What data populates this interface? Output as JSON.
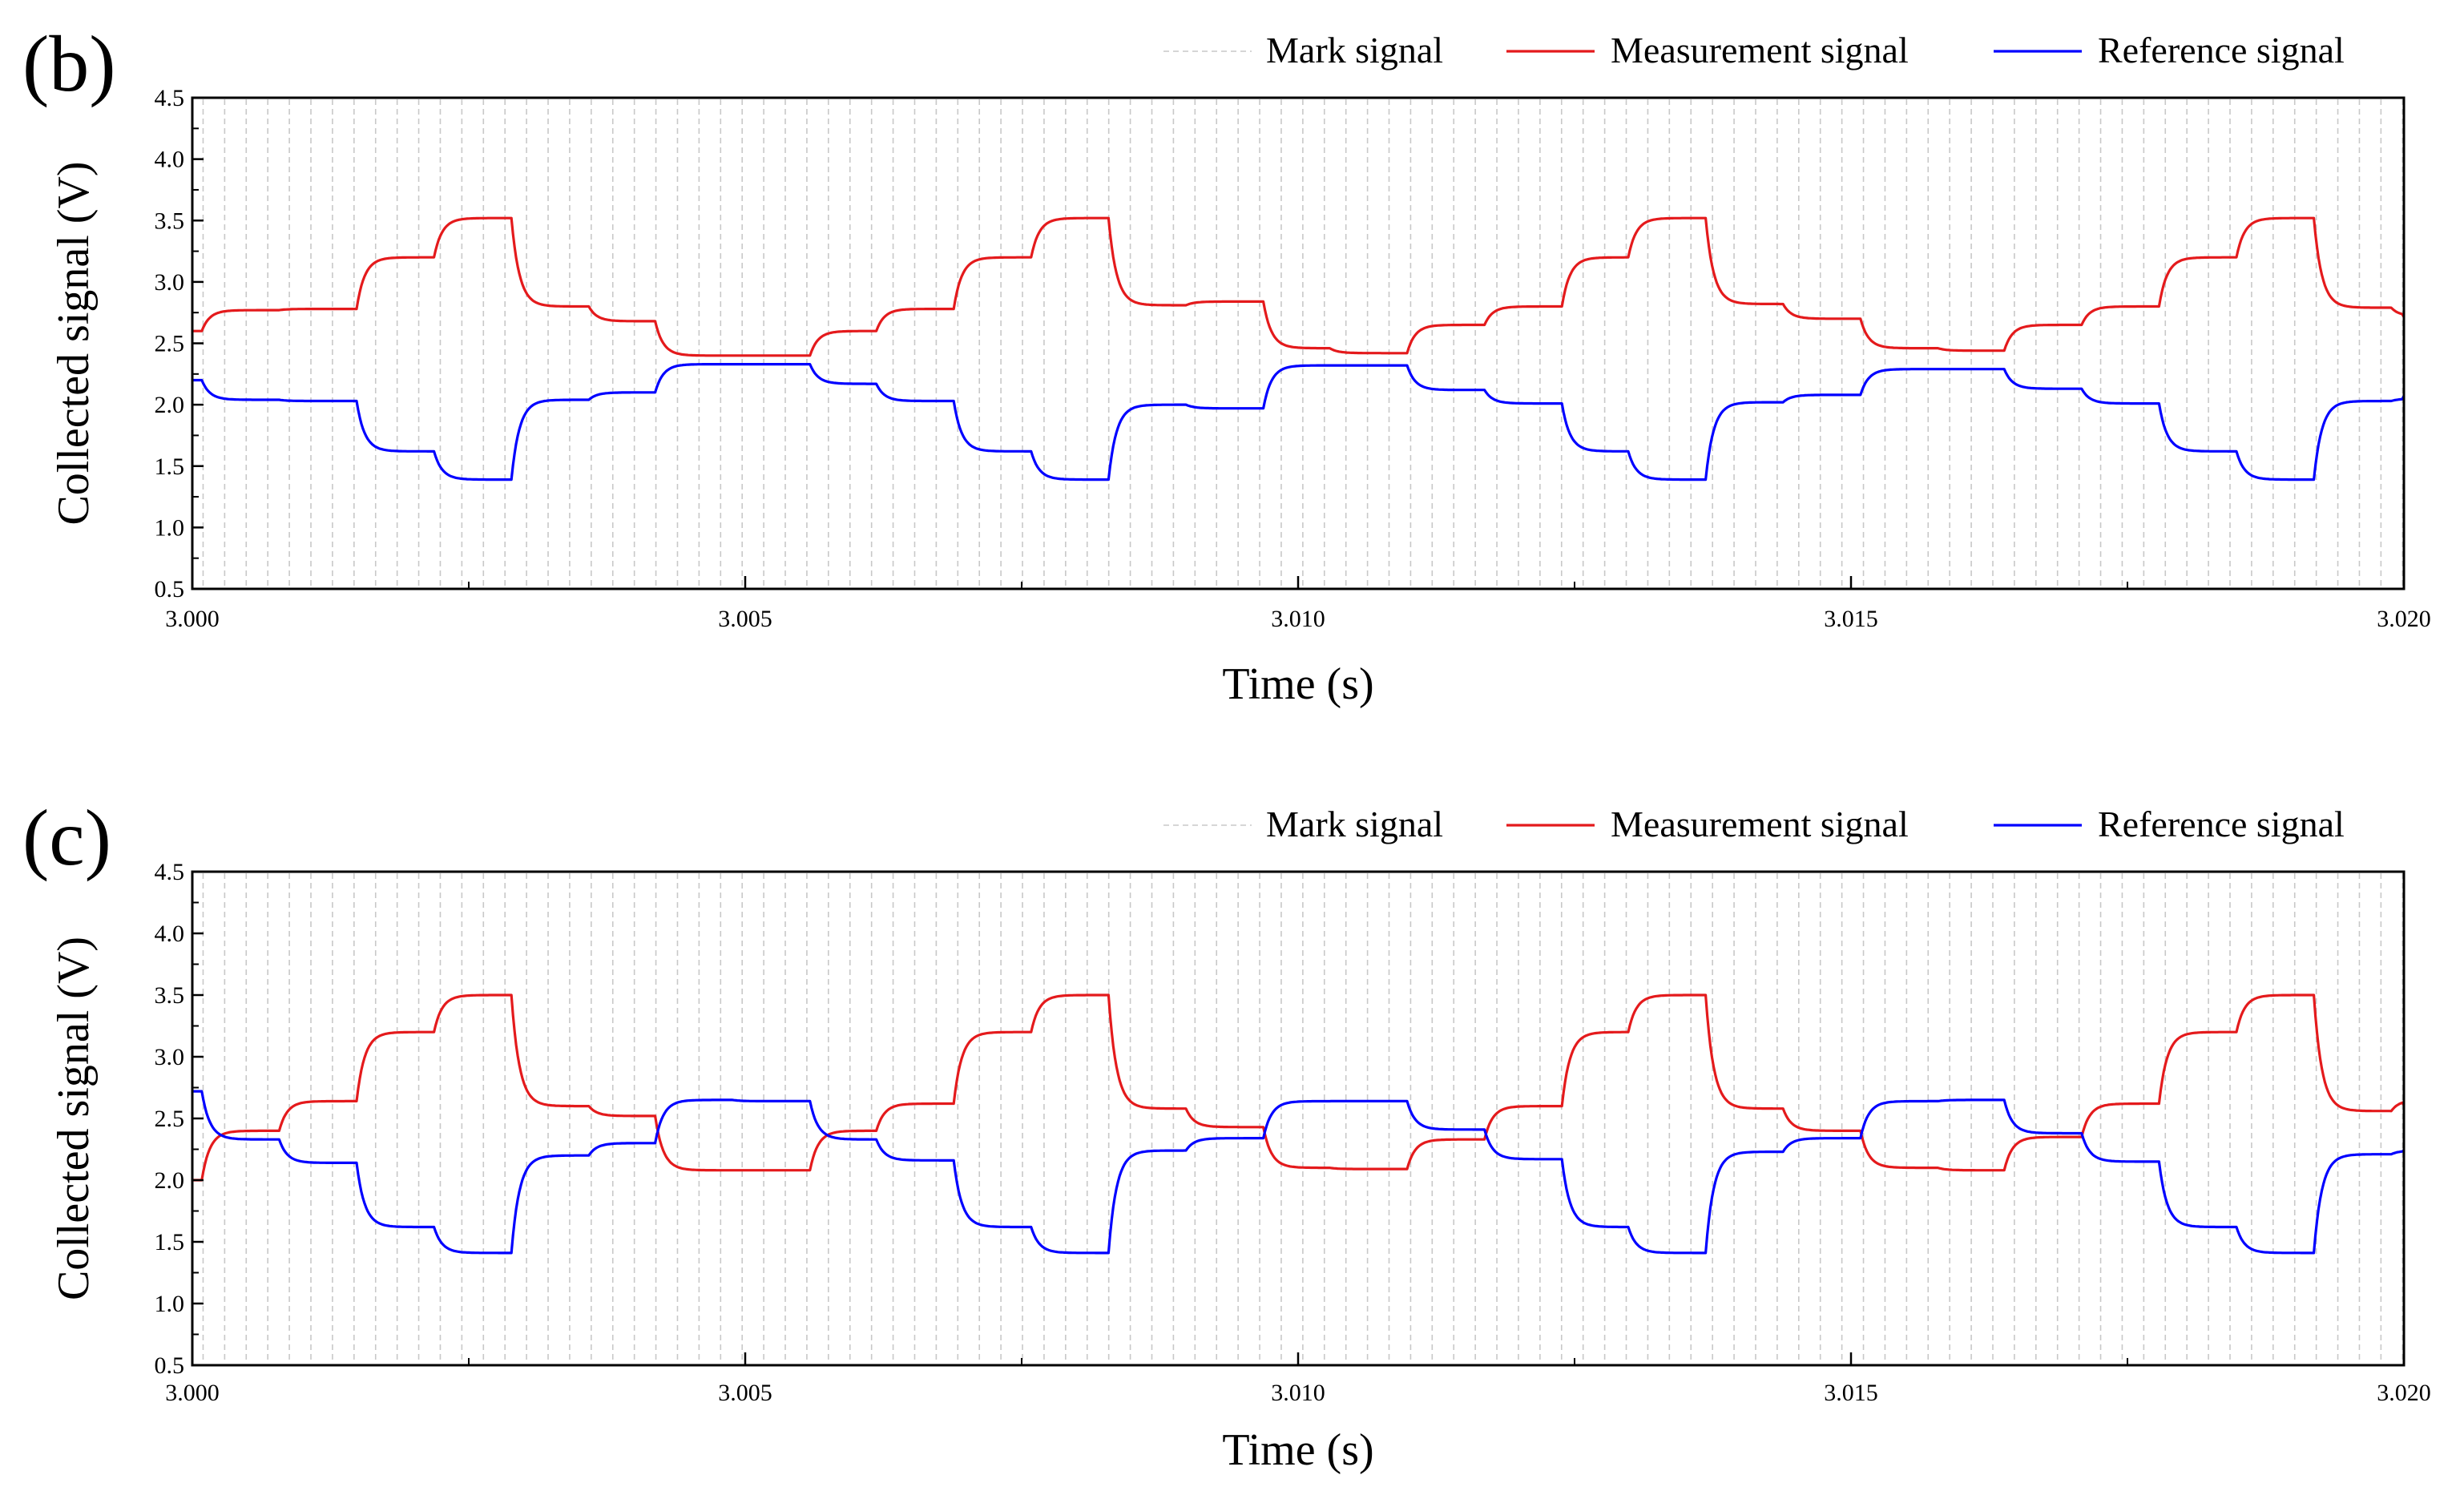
{
  "chart_data": [
    {
      "type": "line",
      "panel_label": "(b)",
      "xlabel": "Time (s)",
      "ylabel": "Collected signal (V)",
      "xlim": [
        3.0,
        3.02
      ],
      "ylim": [
        0.5,
        4.5
      ],
      "xticks": [
        "3.000",
        "3.005",
        "3.010",
        "3.015",
        "3.020"
      ],
      "yticks": [
        "0.5",
        "1.0",
        "1.5",
        "2.0",
        "2.5",
        "3.0",
        "3.5",
        "4.0",
        "4.5"
      ],
      "legend": [
        "Mark signal",
        "Measurement signal",
        "Reference signal"
      ],
      "mark_period": 0.000195,
      "series": [
        {
          "name": "Measurement signal",
          "color": "#e41a1c",
          "steps": [
            {
              "t": 3.0,
              "v": 2.6
            },
            {
              "t": 3.0001,
              "v": 2.77
            },
            {
              "t": 3.0008,
              "v": 2.78
            },
            {
              "t": 3.0015,
              "v": 3.2
            },
            {
              "t": 3.0022,
              "v": 3.52
            },
            {
              "t": 3.0029,
              "v": 2.8
            },
            {
              "t": 3.0036,
              "v": 2.68
            },
            {
              "t": 3.0042,
              "v": 2.4
            },
            {
              "t": 3.0049,
              "v": 2.4
            },
            {
              "t": 3.0056,
              "v": 2.6
            },
            {
              "t": 3.0062,
              "v": 2.78
            },
            {
              "t": 3.0069,
              "v": 3.2
            },
            {
              "t": 3.0076,
              "v": 3.52
            },
            {
              "t": 3.0083,
              "v": 2.81
            },
            {
              "t": 3.009,
              "v": 2.84
            },
            {
              "t": 3.0097,
              "v": 2.46
            },
            {
              "t": 3.0103,
              "v": 2.42
            },
            {
              "t": 3.011,
              "v": 2.65
            },
            {
              "t": 3.0117,
              "v": 2.8
            },
            {
              "t": 3.0124,
              "v": 3.2
            },
            {
              "t": 3.013,
              "v": 3.52
            },
            {
              "t": 3.0137,
              "v": 2.82
            },
            {
              "t": 3.0144,
              "v": 2.7
            },
            {
              "t": 3.0151,
              "v": 2.46
            },
            {
              "t": 3.0158,
              "v": 2.44
            },
            {
              "t": 3.0164,
              "v": 2.65
            },
            {
              "t": 3.0171,
              "v": 2.8
            },
            {
              "t": 3.0178,
              "v": 3.2
            },
            {
              "t": 3.0185,
              "v": 3.52
            },
            {
              "t": 3.0192,
              "v": 2.79
            },
            {
              "t": 3.0199,
              "v": 2.72
            },
            {
              "t": 3.02,
              "v": 2.6
            }
          ]
        },
        {
          "name": "Reference signal",
          "color": "#0000ff",
          "steps": [
            {
              "t": 3.0,
              "v": 2.2
            },
            {
              "t": 3.0001,
              "v": 2.04
            },
            {
              "t": 3.0008,
              "v": 2.03
            },
            {
              "t": 3.0015,
              "v": 1.62
            },
            {
              "t": 3.0022,
              "v": 1.39
            },
            {
              "t": 3.0029,
              "v": 2.04
            },
            {
              "t": 3.0036,
              "v": 2.1
            },
            {
              "t": 3.0042,
              "v": 2.33
            },
            {
              "t": 3.0049,
              "v": 2.33
            },
            {
              "t": 3.0056,
              "v": 2.17
            },
            {
              "t": 3.0062,
              "v": 2.03
            },
            {
              "t": 3.0069,
              "v": 1.62
            },
            {
              "t": 3.0076,
              "v": 1.39
            },
            {
              "t": 3.0083,
              "v": 2.0
            },
            {
              "t": 3.009,
              "v": 1.97
            },
            {
              "t": 3.0097,
              "v": 2.32
            },
            {
              "t": 3.0103,
              "v": 2.32
            },
            {
              "t": 3.011,
              "v": 2.12
            },
            {
              "t": 3.0117,
              "v": 2.01
            },
            {
              "t": 3.0124,
              "v": 1.62
            },
            {
              "t": 3.013,
              "v": 1.39
            },
            {
              "t": 3.0137,
              "v": 2.02
            },
            {
              "t": 3.0144,
              "v": 2.08
            },
            {
              "t": 3.0151,
              "v": 2.29
            },
            {
              "t": 3.0158,
              "v": 2.29
            },
            {
              "t": 3.0164,
              "v": 2.13
            },
            {
              "t": 3.0171,
              "v": 2.01
            },
            {
              "t": 3.0178,
              "v": 1.62
            },
            {
              "t": 3.0185,
              "v": 1.39
            },
            {
              "t": 3.0192,
              "v": 2.03
            },
            {
              "t": 3.0199,
              "v": 2.05
            },
            {
              "t": 3.02,
              "v": 2.2
            }
          ]
        }
      ]
    },
    {
      "type": "line",
      "panel_label": "(c)",
      "xlabel": "Time (s)",
      "ylabel": "Collected signal (V)",
      "xlim": [
        3.0,
        3.02
      ],
      "ylim": [
        0.5,
        4.5
      ],
      "xticks": [
        "3.000",
        "3.005",
        "3.010",
        "3.015",
        "3.020"
      ],
      "yticks": [
        "0.5",
        "1.0",
        "1.5",
        "2.0",
        "2.5",
        "3.0",
        "3.5",
        "4.0",
        "4.5"
      ],
      "legend": [
        "Mark signal",
        "Measurement signal",
        "Reference signal"
      ],
      "mark_period": 0.000195,
      "series": [
        {
          "name": "Measurement signal",
          "color": "#e41a1c",
          "steps": [
            {
              "t": 3.0,
              "v": 2.0
            },
            {
              "t": 3.0001,
              "v": 2.4
            },
            {
              "t": 3.0008,
              "v": 2.64
            },
            {
              "t": 3.0015,
              "v": 3.2
            },
            {
              "t": 3.0022,
              "v": 3.5
            },
            {
              "t": 3.0029,
              "v": 2.6
            },
            {
              "t": 3.0036,
              "v": 2.52
            },
            {
              "t": 3.0042,
              "v": 2.08
            },
            {
              "t": 3.0049,
              "v": 2.08
            },
            {
              "t": 3.0056,
              "v": 2.4
            },
            {
              "t": 3.0062,
              "v": 2.62
            },
            {
              "t": 3.0069,
              "v": 3.2
            },
            {
              "t": 3.0076,
              "v": 3.5
            },
            {
              "t": 3.0083,
              "v": 2.58
            },
            {
              "t": 3.009,
              "v": 2.43
            },
            {
              "t": 3.0097,
              "v": 2.1
            },
            {
              "t": 3.0103,
              "v": 2.09
            },
            {
              "t": 3.011,
              "v": 2.33
            },
            {
              "t": 3.0117,
              "v": 2.6
            },
            {
              "t": 3.0124,
              "v": 3.2
            },
            {
              "t": 3.013,
              "v": 3.5
            },
            {
              "t": 3.0137,
              "v": 2.58
            },
            {
              "t": 3.0144,
              "v": 2.4
            },
            {
              "t": 3.0151,
              "v": 2.1
            },
            {
              "t": 3.0158,
              "v": 2.08
            },
            {
              "t": 3.0164,
              "v": 2.35
            },
            {
              "t": 3.0171,
              "v": 2.62
            },
            {
              "t": 3.0178,
              "v": 3.2
            },
            {
              "t": 3.0185,
              "v": 3.5
            },
            {
              "t": 3.0192,
              "v": 2.56
            },
            {
              "t": 3.0199,
              "v": 2.65
            },
            {
              "t": 3.02,
              "v": 2.52
            }
          ]
        },
        {
          "name": "Reference signal",
          "color": "#0000ff",
          "steps": [
            {
              "t": 3.0,
              "v": 2.72
            },
            {
              "t": 3.0001,
              "v": 2.33
            },
            {
              "t": 3.0008,
              "v": 2.14
            },
            {
              "t": 3.0015,
              "v": 1.62
            },
            {
              "t": 3.0022,
              "v": 1.41
            },
            {
              "t": 3.0029,
              "v": 2.2
            },
            {
              "t": 3.0036,
              "v": 2.3
            },
            {
              "t": 3.0042,
              "v": 2.65
            },
            {
              "t": 3.0049,
              "v": 2.64
            },
            {
              "t": 3.0056,
              "v": 2.33
            },
            {
              "t": 3.0062,
              "v": 2.16
            },
            {
              "t": 3.0069,
              "v": 1.62
            },
            {
              "t": 3.0076,
              "v": 1.41
            },
            {
              "t": 3.0083,
              "v": 2.24
            },
            {
              "t": 3.009,
              "v": 2.34
            },
            {
              "t": 3.0097,
              "v": 2.64
            },
            {
              "t": 3.0103,
              "v": 2.64
            },
            {
              "t": 3.011,
              "v": 2.41
            },
            {
              "t": 3.0117,
              "v": 2.17
            },
            {
              "t": 3.0124,
              "v": 1.62
            },
            {
              "t": 3.013,
              "v": 1.41
            },
            {
              "t": 3.0137,
              "v": 2.23
            },
            {
              "t": 3.0144,
              "v": 2.34
            },
            {
              "t": 3.0151,
              "v": 2.64
            },
            {
              "t": 3.0158,
              "v": 2.65
            },
            {
              "t": 3.0164,
              "v": 2.38
            },
            {
              "t": 3.0171,
              "v": 2.15
            },
            {
              "t": 3.0178,
              "v": 1.62
            },
            {
              "t": 3.0185,
              "v": 1.41
            },
            {
              "t": 3.0192,
              "v": 2.21
            },
            {
              "t": 3.0199,
              "v": 2.24
            },
            {
              "t": 3.02,
              "v": 2.28
            }
          ]
        }
      ]
    }
  ]
}
